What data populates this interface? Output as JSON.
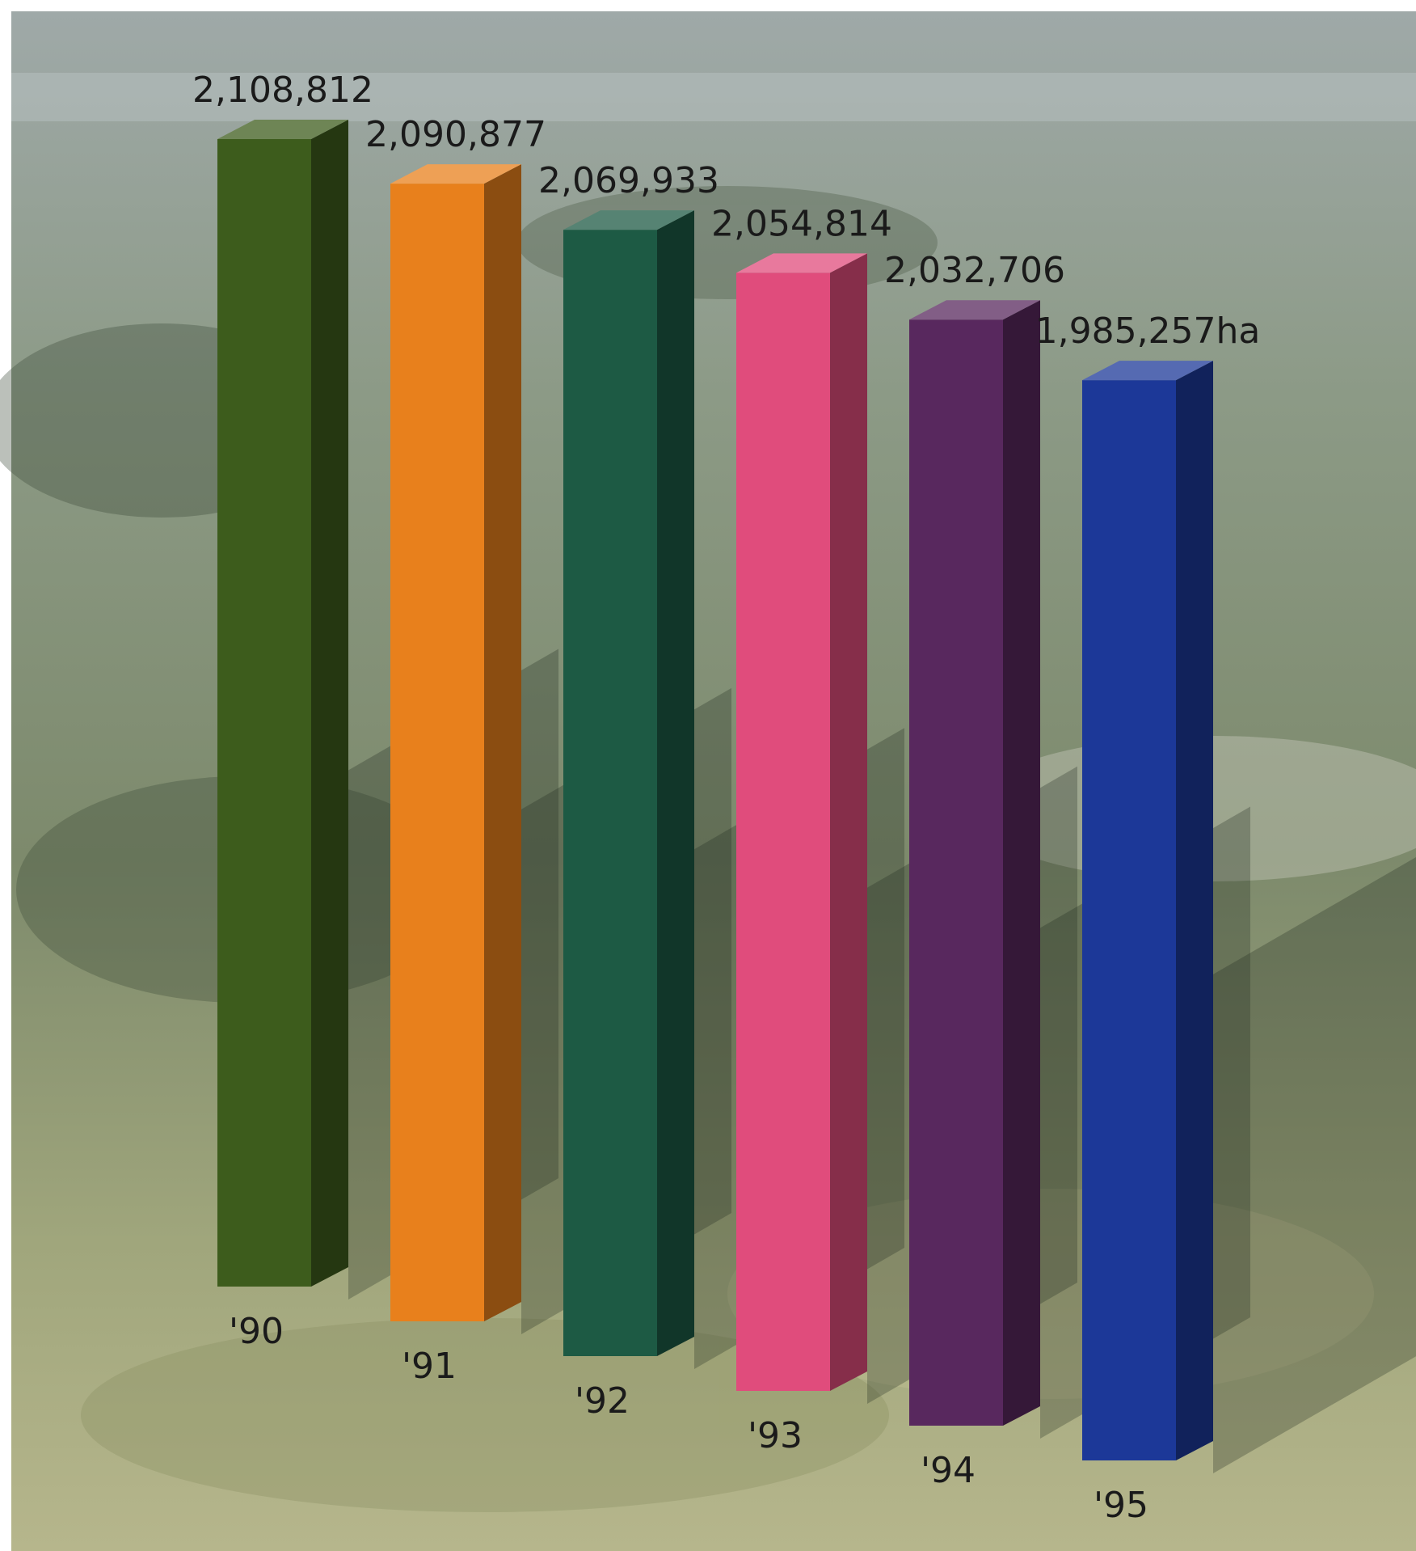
{
  "chart_data": {
    "type": "bar3d",
    "categories": [
      "'90",
      "'91",
      "'92",
      "'93",
      "'94",
      "'95"
    ],
    "values": [
      2108812,
      2090877,
      2069933,
      2054814,
      2032706,
      1985257
    ],
    "value_labels": [
      "2,108,812",
      "2,090,877",
      "2,069,933",
      "2,054,814",
      "2,032,706",
      "1,985,257ha"
    ],
    "colors": [
      "#3d5c1c",
      "#e8801c",
      "#1d5a44",
      "#e04c7c",
      "#58285e",
      "#1c3898"
    ]
  }
}
